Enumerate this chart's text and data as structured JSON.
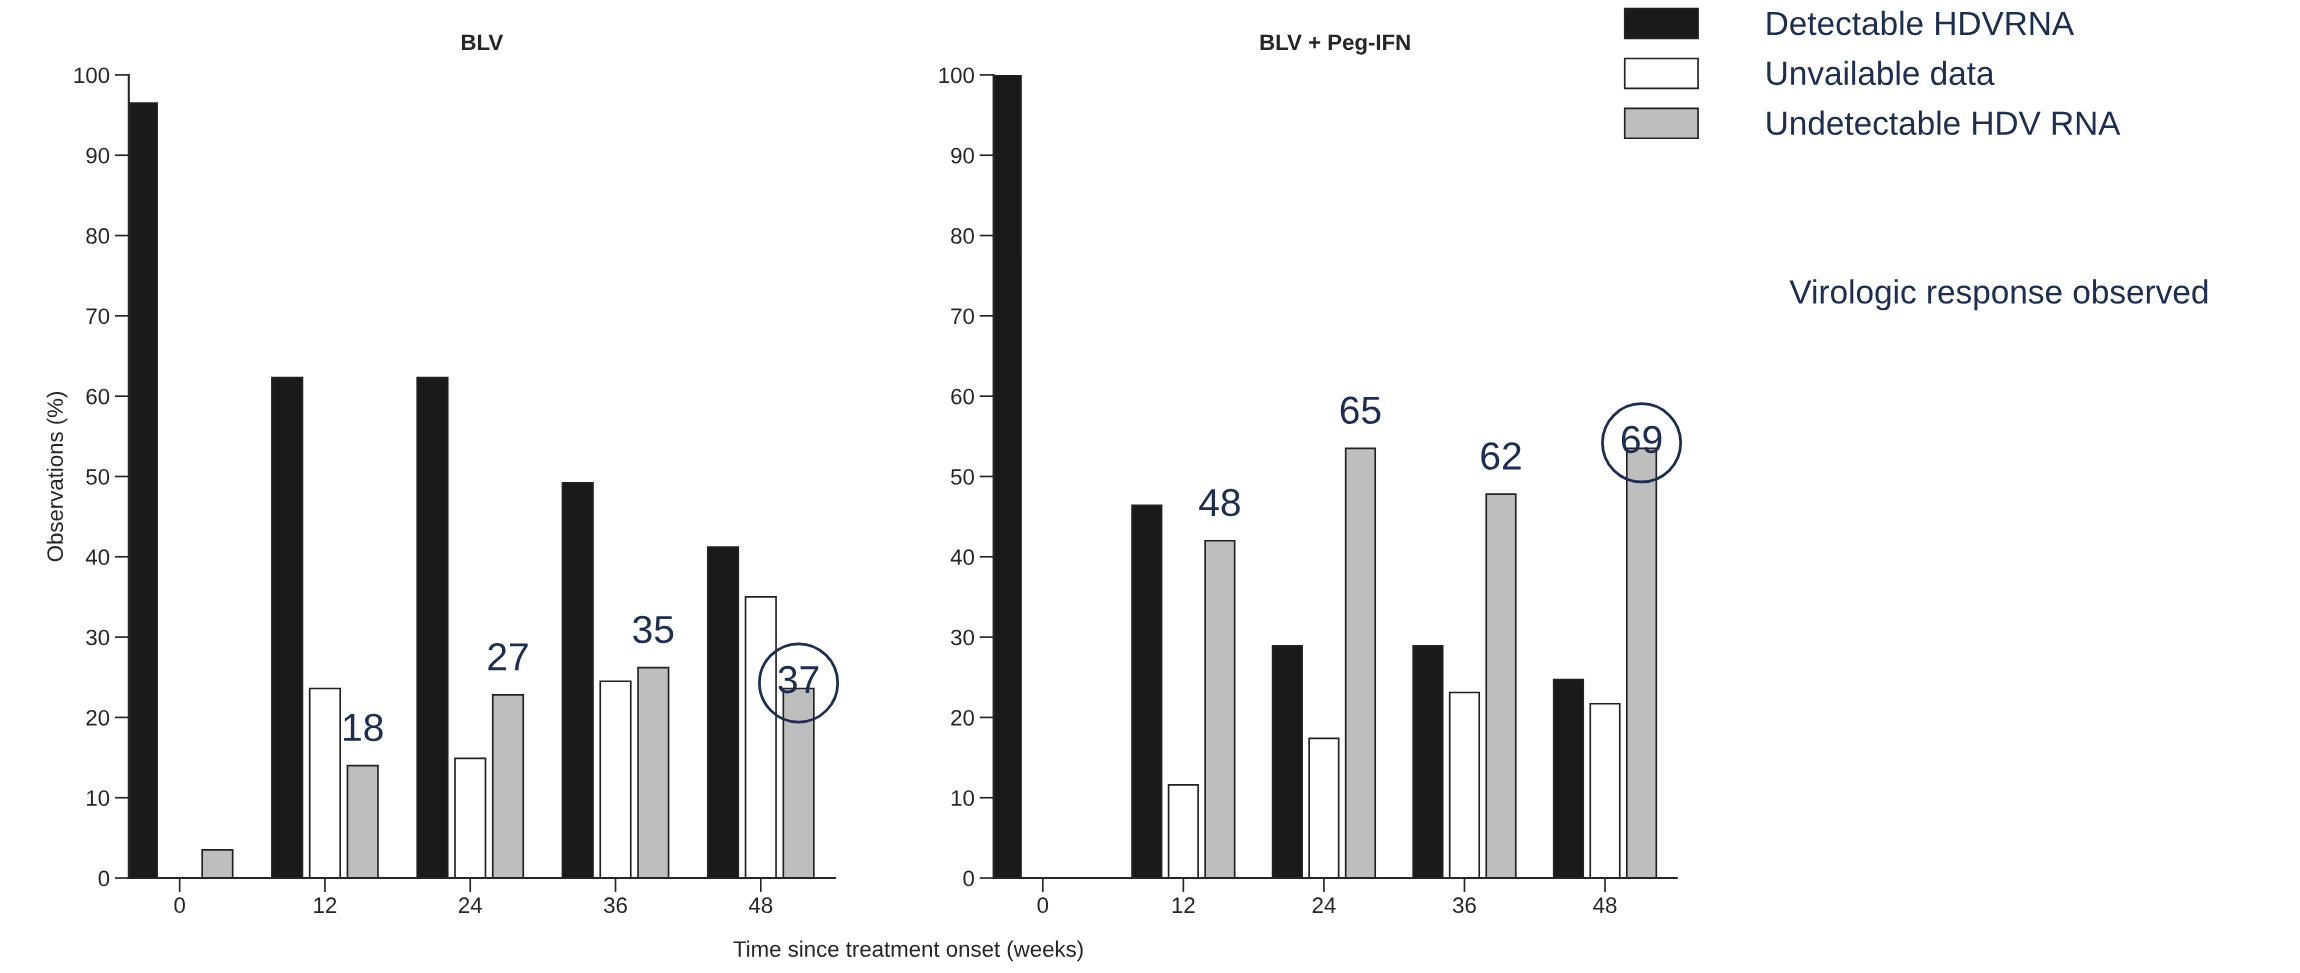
{
  "chart_data": [
    {
      "type": "bar",
      "title": "BLV",
      "xlabel": "Time since treatment onset (weeks)",
      "ylabel": "Observations (%)",
      "categories": [
        "0",
        "12",
        "24",
        "36",
        "48"
      ],
      "series": [
        {
          "color": "#1a1a1a",
          "values": [
            96.5,
            62.3,
            62.3,
            49.2,
            41.2
          ]
        },
        {
          "color": "#ffffff",
          "values": [
            null,
            23.6,
            14.9,
            24.5,
            35.0
          ]
        },
        {
          "color": "#bebebe",
          "values": [
            3.5,
            14.0,
            22.8,
            26.2,
            23.6
          ]
        }
      ],
      "ylim": [
        0,
        100
      ],
      "yticks": [
        0,
        10,
        20,
        30,
        40,
        50,
        60,
        70,
        80,
        90,
        100
      ],
      "grid": false,
      "annotations": [
        "18",
        "27",
        "35",
        "37"
      ]
    },
    {
      "type": "bar",
      "title": "BLV + Peg-IFN",
      "categories": [
        "0",
        "12",
        "24",
        "36",
        "48"
      ],
      "series": [
        {
          "name": "Detectable HDVRNA",
          "color": "#1a1a1a",
          "values": [
            100,
            46.4,
            28.9,
            28.9,
            24.7
          ]
        },
        {
          "name": "Unvailable data",
          "color": "#ffffff",
          "values": [
            null,
            11.6,
            17.4,
            23.1,
            21.7
          ]
        },
        {
          "name": "Undetectable HDV RNA",
          "color": "#bebebe",
          "values": [
            null,
            42.0,
            53.5,
            47.8,
            53.5
          ]
        }
      ],
      "ylim": [
        0,
        100
      ],
      "yticks": [
        0,
        10,
        20,
        30,
        40,
        50,
        60,
        70,
        80,
        90,
        100
      ],
      "grid": false,
      "legend": "right",
      "annotations": [
        "48",
        "65",
        "62",
        "69",
        "Virologic response observed"
      ]
    }
  ]
}
